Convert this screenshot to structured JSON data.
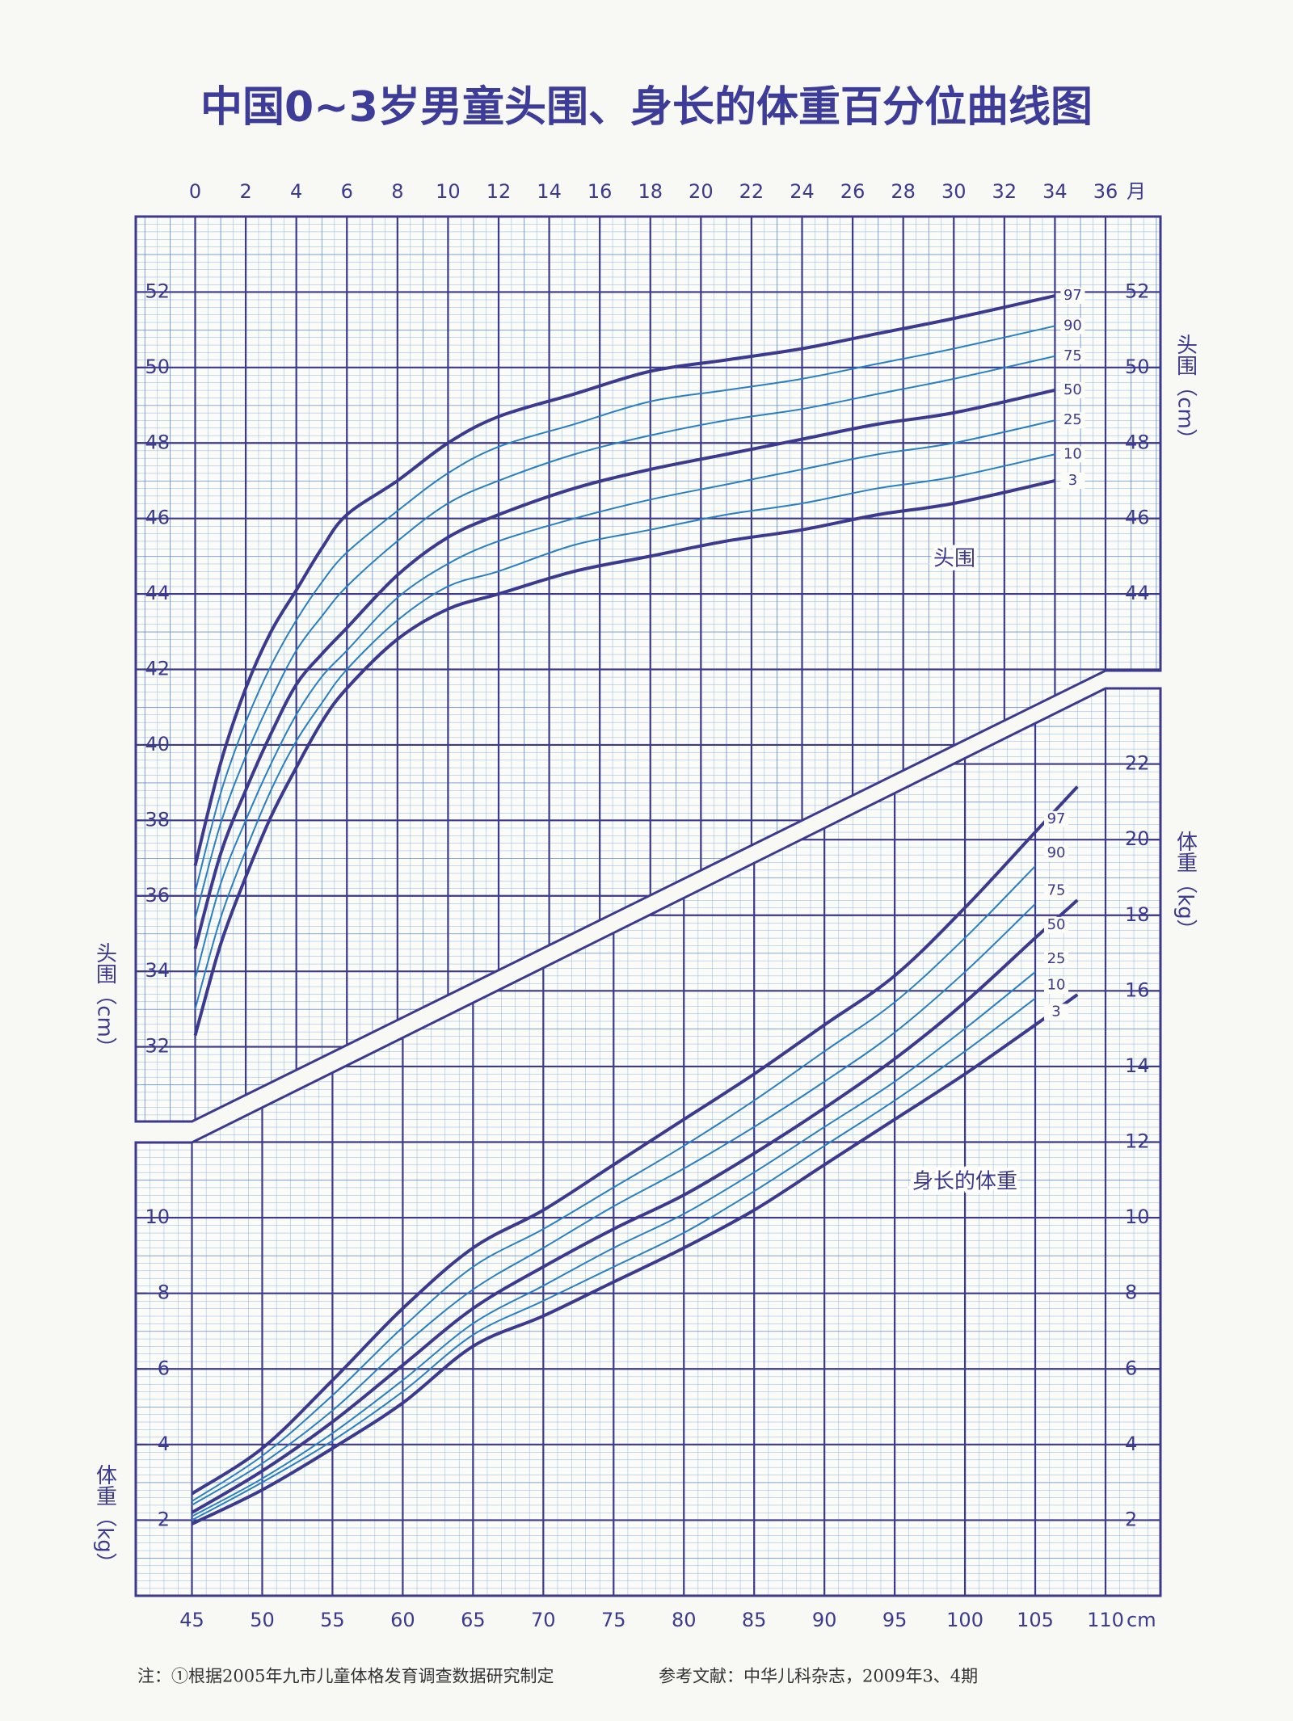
{
  "title": "中国0~3岁男童头围、身长的体重百分位曲线图",
  "footnotes": [
    "注：①根据2005年九市儿童体格发育调查数据研究制定",
    "参考文献：中华儿科杂志，2009年3、4期"
  ],
  "chart_data": [
    {
      "type": "line",
      "x_label": "月",
      "y_label": "头围（cm）",
      "annotation": "头围",
      "xlim": [
        0,
        36
      ],
      "ylim": [
        30,
        54
      ],
      "xticks": [
        0,
        2,
        4,
        6,
        8,
        10,
        12,
        14,
        16,
        18,
        20,
        22,
        24,
        26,
        28,
        30,
        32,
        34,
        36
      ],
      "yticks": [
        32,
        34,
        36,
        38,
        40,
        42,
        44,
        46,
        48,
        50,
        52
      ],
      "grid": true,
      "x": [
        0,
        1,
        2,
        3,
        4,
        5,
        6,
        8,
        10,
        12,
        15,
        18,
        21,
        24,
        27,
        30,
        34
      ],
      "series": [
        {
          "name": "3",
          "color": "#3b3a8e",
          "values": [
            32.3,
            34.7,
            36.5,
            38.1,
            39.4,
            40.6,
            41.5,
            42.8,
            43.6,
            44.0,
            44.6,
            45.0,
            45.4,
            45.7,
            46.1,
            46.4,
            47.0
          ]
        },
        {
          "name": "10",
          "color": "#2a7fc1",
          "values": [
            33.0,
            35.4,
            37.2,
            38.8,
            40.1,
            41.1,
            42.0,
            43.3,
            44.2,
            44.6,
            45.3,
            45.7,
            46.1,
            46.4,
            46.8,
            47.1,
            47.7
          ]
        },
        {
          "name": "25",
          "color": "#2a7fc1",
          "values": [
            33.8,
            36.3,
            38.0,
            39.5,
            40.8,
            41.8,
            42.5,
            43.9,
            44.8,
            45.4,
            46.0,
            46.5,
            46.9,
            47.3,
            47.7,
            48.0,
            48.6
          ]
        },
        {
          "name": "50",
          "color": "#3b3a8e",
          "values": [
            34.6,
            37.1,
            38.8,
            40.3,
            41.6,
            42.4,
            43.1,
            44.5,
            45.5,
            46.1,
            46.8,
            47.3,
            47.7,
            48.1,
            48.5,
            48.8,
            49.4
          ]
        },
        {
          "name": "75",
          "color": "#2a7fc1",
          "values": [
            35.4,
            37.9,
            39.7,
            41.2,
            42.5,
            43.4,
            44.2,
            45.4,
            46.4,
            47.0,
            47.7,
            48.2,
            48.6,
            48.9,
            49.3,
            49.7,
            50.3
          ]
        },
        {
          "name": "90",
          "color": "#2a7fc1",
          "values": [
            36.1,
            38.7,
            40.6,
            42.1,
            43.3,
            44.3,
            45.1,
            46.2,
            47.2,
            47.9,
            48.5,
            49.1,
            49.4,
            49.7,
            50.1,
            50.5,
            51.1
          ]
        },
        {
          "name": "97",
          "color": "#3b3a8e",
          "values": [
            36.8,
            39.5,
            41.5,
            43.0,
            44.1,
            45.2,
            46.1,
            47.0,
            48.0,
            48.7,
            49.3,
            49.9,
            50.2,
            50.5,
            50.9,
            51.3,
            51.9
          ]
        }
      ]
    },
    {
      "type": "line",
      "x_label": "cm",
      "y_label": "体重（kg）",
      "annotation": "身长的体重",
      "xlim": [
        45,
        110
      ],
      "ylim": [
        0,
        24
      ],
      "xticks": [
        45,
        50,
        55,
        60,
        65,
        70,
        75,
        80,
        85,
        90,
        95,
        100,
        105,
        110
      ],
      "yticks": [
        2,
        4,
        6,
        8,
        10,
        12,
        14,
        16,
        18,
        20,
        22
      ],
      "grid": true,
      "x": [
        45,
        50,
        55,
        60,
        65,
        70,
        75,
        80,
        85,
        90,
        95,
        100,
        105,
        108
      ],
      "series": [
        {
          "name": "3",
          "color": "#3b3a8e",
          "values": [
            1.9,
            2.8,
            3.9,
            5.1,
            6.6,
            7.4,
            8.3,
            9.2,
            10.2,
            11.4,
            12.6,
            13.8,
            15.1,
            15.9
          ]
        },
        {
          "name": "10",
          "color": "#2a7fc1",
          "values": [
            2.0,
            3.0,
            4.1,
            5.4,
            6.9,
            7.8,
            8.7,
            9.6,
            10.7,
            11.9,
            13.1,
            14.4,
            15.8,
            null
          ]
        },
        {
          "name": "25",
          "color": "#2a7fc1",
          "values": [
            2.1,
            3.1,
            4.3,
            5.7,
            7.2,
            8.2,
            9.2,
            10.1,
            11.2,
            12.4,
            13.6,
            15.0,
            16.5,
            null
          ]
        },
        {
          "name": "50",
          "color": "#3b3a8e",
          "values": [
            2.2,
            3.3,
            4.6,
            6.1,
            7.6,
            8.7,
            9.7,
            10.6,
            11.7,
            12.9,
            14.2,
            15.7,
            17.4,
            18.4
          ]
        },
        {
          "name": "75",
          "color": "#2a7fc1",
          "values": [
            2.4,
            3.5,
            4.9,
            6.6,
            8.1,
            9.2,
            10.3,
            11.3,
            12.4,
            13.6,
            14.9,
            16.5,
            18.3,
            null
          ]
        },
        {
          "name": "90",
          "color": "#2a7fc1",
          "values": [
            2.5,
            3.7,
            5.3,
            7.1,
            8.7,
            9.7,
            10.8,
            11.9,
            13.1,
            14.4,
            15.7,
            17.4,
            19.3,
            null
          ]
        },
        {
          "name": "97",
          "color": "#3b3a8e",
          "values": [
            2.7,
            3.9,
            5.7,
            7.6,
            9.2,
            10.2,
            11.4,
            12.6,
            13.8,
            15.1,
            16.4,
            18.2,
            20.2,
            21.4
          ]
        }
      ]
    }
  ]
}
